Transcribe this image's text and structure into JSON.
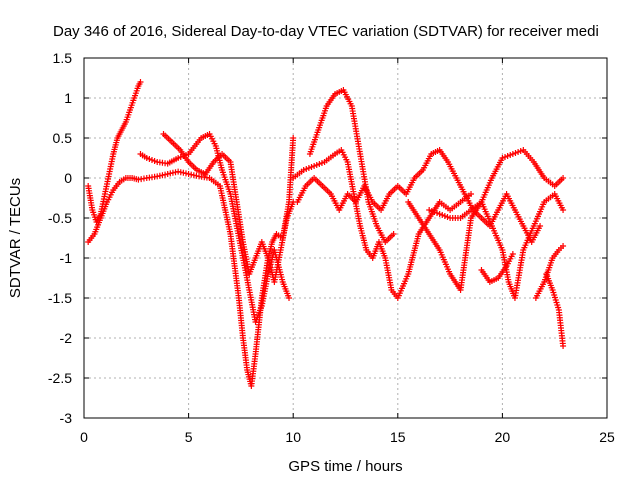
{
  "chart_data": {
    "type": "scatter",
    "title": "Day 346 of 2016, Sidereal Day-to-day VTEC variation (SDTVAR) for receiver medi",
    "xlabel": "GPS time / hours",
    "ylabel": "SDTVAR / TECUs",
    "xlim": [
      0,
      25
    ],
    "ylim": [
      -3,
      1.5
    ],
    "xticks": [
      0,
      5,
      10,
      15,
      20,
      25
    ],
    "yticks": [
      -3,
      -2.5,
      -2,
      -1.5,
      -1,
      -0.5,
      0,
      0.5,
      1,
      1.5
    ],
    "xtick_labels": [
      "0",
      "5",
      "10",
      "15",
      "20",
      "25"
    ],
    "ytick_labels": [
      "-3",
      "-2.5",
      "-2",
      "-1.5",
      "-1",
      "-0.5",
      "0",
      "0.5",
      "1",
      "1.5"
    ],
    "grid": true,
    "marker": "+",
    "color": "#ff0000",
    "series": [
      {
        "x": [
          0.2,
          0.4,
          0.6,
          0.8,
          1.0,
          1.2,
          1.4,
          1.6,
          1.8,
          2.0,
          2.2,
          2.4,
          2.6,
          2.7
        ],
        "y": [
          -0.1,
          -0.4,
          -0.55,
          -0.45,
          -0.2,
          0.05,
          0.3,
          0.5,
          0.6,
          0.7,
          0.85,
          1.0,
          1.15,
          1.2
        ]
      },
      {
        "x": [
          0.2,
          0.5,
          0.8,
          1.1,
          1.4,
          1.7,
          2.0,
          2.3,
          2.6,
          3.0,
          3.5,
          4.0,
          4.5,
          5.0,
          5.5,
          6.0,
          6.5,
          7.0,
          7.2,
          7.4,
          7.6,
          7.8,
          8.0,
          8.2,
          8.5,
          8.8,
          9.0,
          9.2,
          9.5,
          9.8,
          10.0
        ],
        "y": [
          -0.8,
          -0.7,
          -0.5,
          -0.3,
          -0.15,
          -0.05,
          0.0,
          0.0,
          -0.02,
          0.0,
          0.02,
          0.05,
          0.08,
          0.05,
          0.02,
          0.0,
          -0.1,
          -0.7,
          -1.1,
          -1.5,
          -2.0,
          -2.4,
          -2.6,
          -2.2,
          -1.5,
          -1.0,
          -0.8,
          -0.7,
          -0.75,
          -0.3,
          0.5
        ]
      },
      {
        "x": [
          2.7,
          3.0,
          3.5,
          4.0,
          4.5,
          5.0,
          5.3,
          5.6,
          6.0,
          6.3,
          6.6,
          7.0,
          7.3,
          7.6,
          7.9,
          8.2,
          8.5,
          8.8,
          9.1,
          9.5,
          9.8
        ],
        "y": [
          0.3,
          0.25,
          0.2,
          0.18,
          0.25,
          0.3,
          0.4,
          0.5,
          0.55,
          0.4,
          0.1,
          -0.2,
          -0.6,
          -1.0,
          -1.4,
          -1.8,
          -1.6,
          -1.2,
          -0.9,
          -1.3,
          -1.5
        ]
      },
      {
        "x": [
          3.8,
          4.2,
          4.6,
          5.0,
          5.4,
          5.8,
          6.2,
          6.6,
          7.0,
          7.3,
          7.6,
          7.9,
          8.2,
          8.5,
          8.8,
          9.1,
          9.4,
          9.7,
          10.0
        ],
        "y": [
          0.55,
          0.45,
          0.35,
          0.2,
          0.1,
          0.05,
          0.2,
          0.3,
          0.2,
          -0.3,
          -0.8,
          -1.2,
          -1.0,
          -0.8,
          -1.0,
          -1.3,
          -0.9,
          -0.5,
          -0.3
        ]
      },
      {
        "x": [
          10.0,
          10.5,
          11.0,
          11.5,
          12.0,
          12.3,
          12.6,
          12.9,
          13.2,
          13.5,
          13.8,
          14.1,
          14.4,
          14.7,
          15.0,
          15.5,
          16.0,
          16.5,
          17.0,
          17.5,
          18.0,
          18.5
        ],
        "y": [
          0.0,
          0.1,
          0.15,
          0.2,
          0.3,
          0.35,
          0.2,
          -0.2,
          -0.6,
          -0.9,
          -1.0,
          -0.8,
          -1.0,
          -1.4,
          -1.5,
          -1.2,
          -0.7,
          -0.5,
          -0.3,
          -0.4,
          -0.3,
          -0.2
        ]
      },
      {
        "x": [
          10.8,
          11.2,
          11.6,
          12.0,
          12.4,
          12.8,
          13.2,
          13.6,
          14.0,
          14.4,
          14.8
        ],
        "y": [
          0.3,
          0.6,
          0.9,
          1.05,
          1.1,
          0.9,
          0.3,
          -0.3,
          -0.6,
          -0.8,
          -0.7
        ]
      },
      {
        "x": [
          10.2,
          10.6,
          11.0,
          11.4,
          11.8,
          12.2,
          12.6,
          13.0,
          13.4,
          13.8,
          14.2,
          14.6,
          15.0,
          15.4,
          15.8,
          16.2,
          16.6,
          17.0,
          17.4,
          17.8,
          18.2,
          18.6,
          19.0,
          19.4,
          19.8,
          20.2,
          20.6,
          21.0,
          21.4,
          21.8
        ],
        "y": [
          -0.3,
          -0.1,
          0.0,
          -0.1,
          -0.2,
          -0.4,
          -0.2,
          -0.3,
          -0.1,
          -0.3,
          -0.4,
          -0.2,
          -0.1,
          -0.2,
          0.0,
          0.1,
          0.3,
          0.35,
          0.2,
          0.0,
          -0.2,
          -0.4,
          -0.5,
          -0.6,
          -0.4,
          -0.2,
          -0.4,
          -0.6,
          -0.8,
          -0.6
        ]
      },
      {
        "x": [
          15.5,
          16.0,
          16.5,
          17.0,
          17.5,
          18.0,
          18.5,
          19.0,
          19.5,
          20.0,
          20.5,
          21.0,
          21.5,
          22.0,
          22.5,
          22.9
        ],
        "y": [
          -0.3,
          -0.5,
          -0.7,
          -0.9,
          -1.2,
          -1.4,
          -0.5,
          -0.3,
          0.0,
          0.25,
          0.3,
          0.35,
          0.2,
          0.0,
          -0.1,
          0.0
        ]
      },
      {
        "x": [
          16.5,
          17.0,
          17.5,
          18.0,
          18.5,
          19.0,
          19.5,
          20.0,
          20.3,
          20.6,
          21.0,
          21.5,
          22.0,
          22.5,
          22.9
        ],
        "y": [
          -0.4,
          -0.45,
          -0.5,
          -0.5,
          -0.4,
          -0.3,
          -0.6,
          -0.9,
          -1.3,
          -1.5,
          -0.9,
          -0.6,
          -0.3,
          -0.2,
          -0.4
        ]
      },
      {
        "x": [
          19.0,
          19.4,
          19.8,
          20.2,
          20.5
        ],
        "y": [
          -1.15,
          -1.3,
          -1.25,
          -1.1,
          -0.95
        ]
      },
      {
        "x": [
          21.6,
          22.0,
          22.4,
          22.7,
          22.9
        ],
        "y": [
          -1.5,
          -1.3,
          -1.0,
          -0.9,
          -0.85
        ]
      },
      {
        "x": [
          22.1,
          22.4,
          22.7,
          22.9
        ],
        "y": [
          -1.2,
          -1.4,
          -1.65,
          -2.1
        ]
      }
    ]
  }
}
